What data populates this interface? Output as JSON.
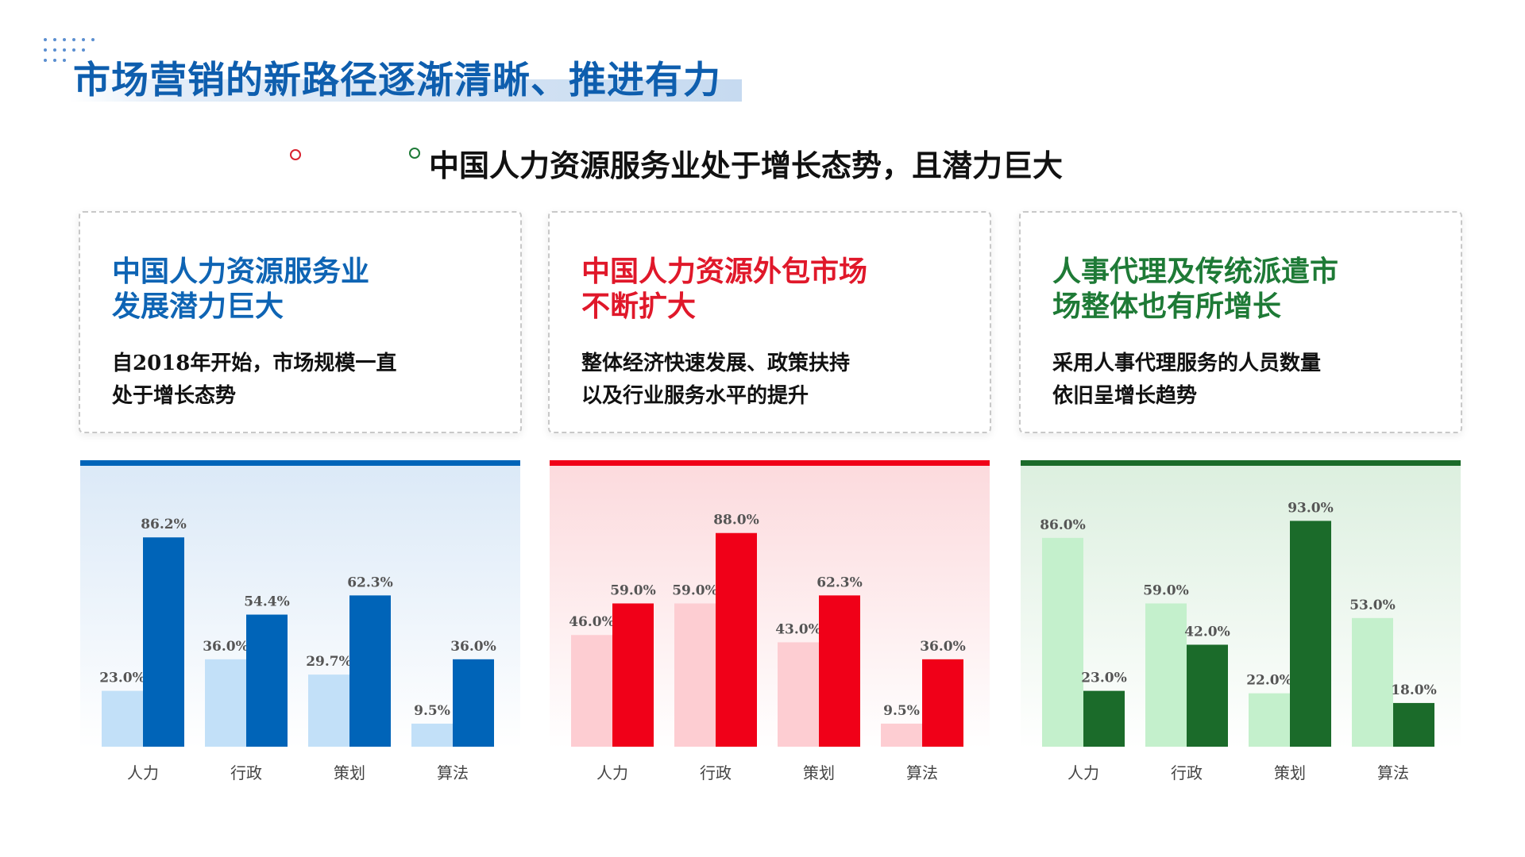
{
  "header": {
    "title": "市场营销的新路径逐渐清晰、推进有力",
    "subtitle": "中国人力资源服务业处于增长态势，且潜力巨大"
  },
  "colors": {
    "blue": "#0064b8",
    "red": "#f00018",
    "green": "#1b6b2a"
  },
  "cards": [
    {
      "heading_line1": "中国人力资源服务业",
      "heading_line2": "发展潜力巨大",
      "body_line1": "自2018年开始，市场规模一直",
      "body_line2": "处于增长态势",
      "heading_color": "#0e64b4"
    },
    {
      "heading_line1": "中国人力资源外包市场",
      "heading_line2": "不断扩大",
      "body_line1": "整体经济快速发展、政策扶持",
      "body_line2": "以及行业服务水平的提升",
      "heading_color": "#e0182a"
    },
    {
      "heading_line1": "人事代理及传统派遣市",
      "heading_line2": "场整体也有所增长",
      "body_line1": "采用人事代理服务的人员数量",
      "body_line2": "依旧呈增长趋势",
      "heading_color": "#1e7a36"
    }
  ],
  "chart_data": [
    {
      "type": "bar",
      "categories": [
        "人力",
        "行政",
        "策划",
        "算法"
      ],
      "series": [
        {
          "values": [
            23.0,
            36.0,
            29.7,
            9.5
          ],
          "labels": [
            "23.0%",
            "36.0%",
            "29.7%",
            "9.5%"
          ],
          "color": "#c2e0f8"
        },
        {
          "values": [
            86.2,
            54.4,
            62.3,
            36.0
          ],
          "labels": [
            "86.2%",
            "54.4%",
            "62.3%",
            "36.0%"
          ],
          "color": "#0064b8"
        }
      ],
      "ylim": [
        0,
        100
      ],
      "grid": false,
      "background_tint": "#dbe9f7",
      "bar_color": "#0064b8"
    },
    {
      "type": "bar",
      "categories": [
        "人力",
        "行政",
        "策划",
        "算法"
      ],
      "series": [
        {
          "values": [
            46.0,
            59.0,
            43.0,
            9.5
          ],
          "labels": [
            "46.0%",
            "59.0%",
            "43.0%",
            "9.5%"
          ],
          "color": "#fdcdd2"
        },
        {
          "values": [
            59.0,
            88.0,
            62.3,
            36.0
          ],
          "labels": [
            "59.0%",
            "88.0%",
            "62.3%",
            "36.0%"
          ],
          "color": "#f00018"
        }
      ],
      "ylim": [
        0,
        100
      ],
      "grid": false,
      "background_tint": "#fcdadd",
      "bar_color": "#f00018"
    },
    {
      "type": "bar",
      "categories": [
        "人力",
        "行政",
        "策划",
        "算法"
      ],
      "series": [
        {
          "values": [
            86.0,
            59.0,
            22.0,
            53.0
          ],
          "labels": [
            "86.0%",
            "59.0%",
            "22.0%",
            "53.0%"
          ],
          "color": "#c4f0cc"
        },
        {
          "values": [
            23.0,
            42.0,
            93.0,
            18.0
          ],
          "labels": [
            "23.0%",
            "42.0%",
            "93.0%",
            "18.0%"
          ],
          "color": "#1b6b2a"
        }
      ],
      "ylim": [
        0,
        100
      ],
      "grid": false,
      "background_tint": "#dcefdf",
      "bar_color": "#1b6b2a"
    }
  ]
}
